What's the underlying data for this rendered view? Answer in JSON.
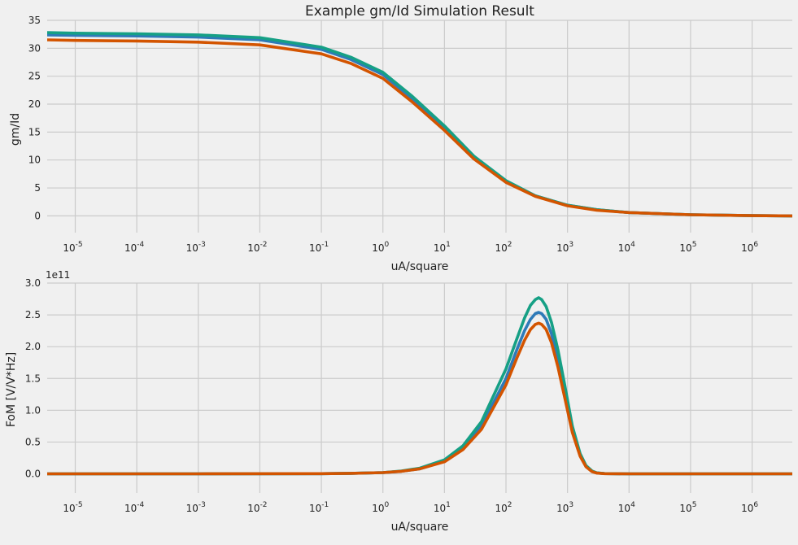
{
  "title": "Example gm/Id Simulation Result",
  "colors": {
    "background": "#f0f0f0",
    "grid": "#cbcbcb",
    "series": [
      "#2e7ab8",
      "#16a085",
      "#d35400"
    ]
  },
  "chart_data": [
    {
      "type": "line",
      "ylabel": "gm/Id",
      "xlabel": "uA/square",
      "xscale": "log",
      "xlim": [
        3.5e-06,
        4500000.0
      ],
      "ylim": [
        -3,
        35
      ],
      "yticks": [
        0,
        5,
        10,
        15,
        20,
        25,
        30,
        35
      ],
      "ytick_labels": [
        "0",
        "5",
        "10",
        "15",
        "20",
        "25",
        "30",
        "35"
      ],
      "xticks": [
        1e-05,
        0.0001,
        0.001,
        0.01,
        0.1,
        1,
        10,
        100,
        1000,
        10000,
        100000,
        1000000
      ],
      "xtick_bases": [
        "10",
        "10",
        "10",
        "10",
        "10",
        "10",
        "10",
        "10",
        "10",
        "10",
        "10",
        "10"
      ],
      "xtick_exponents": [
        "-5",
        "-4",
        "-3",
        "-2",
        "-1",
        "0",
        "1",
        "2",
        "3",
        "4",
        "5",
        "6"
      ],
      "grid": true,
      "series": [
        {
          "x": [
            3.5e-06,
            1e-05,
            0.0001,
            0.001,
            0.01,
            0.1,
            0.3,
            1,
            3,
            10,
            30,
            100,
            300,
            1000,
            3000,
            10000,
            100000,
            1000000,
            4500000.0
          ],
          "y": [
            32.4,
            32.3,
            32.2,
            32.0,
            31.5,
            29.8,
            28.0,
            25.3,
            21.0,
            15.8,
            10.5,
            6.2,
            3.6,
            1.9,
            1.1,
            0.6,
            0.2,
            0.05,
            0.0
          ]
        },
        {
          "x": [
            3.5e-06,
            1e-05,
            0.0001,
            0.001,
            0.01,
            0.1,
            0.3,
            1,
            3,
            10,
            30,
            100,
            300,
            1000,
            3000,
            10000,
            100000,
            1000000,
            4500000.0
          ],
          "y": [
            32.8,
            32.7,
            32.6,
            32.4,
            31.9,
            30.2,
            28.4,
            25.7,
            21.4,
            16.1,
            10.7,
            6.3,
            3.6,
            1.9,
            1.1,
            0.6,
            0.2,
            0.05,
            0.0
          ]
        },
        {
          "x": [
            3.5e-06,
            1e-05,
            0.0001,
            0.001,
            0.01,
            0.1,
            0.3,
            1,
            3,
            10,
            30,
            100,
            300,
            1000,
            3000,
            10000,
            100000,
            1000000,
            4500000.0
          ],
          "y": [
            31.5,
            31.4,
            31.3,
            31.1,
            30.6,
            29.0,
            27.3,
            24.6,
            20.4,
            15.3,
            10.2,
            6.0,
            3.5,
            1.8,
            1.0,
            0.6,
            0.2,
            0.05,
            0.0
          ]
        }
      ]
    },
    {
      "type": "line",
      "ylabel": "FoM [V/V*Hz]",
      "xlabel": "uA/square",
      "xscale": "log",
      "xlim": [
        3.5e-06,
        4500000.0
      ],
      "ylim": [
        -0.3,
        3.0
      ],
      "y_multiplier": "1e11",
      "yticks": [
        0,
        0.5,
        1.0,
        1.5,
        2.0,
        2.5,
        3.0
      ],
      "ytick_labels": [
        "0.0",
        "0.5",
        "1.0",
        "1.5",
        "2.0",
        "2.5",
        "3.0"
      ],
      "xticks": [
        1e-05,
        0.0001,
        0.001,
        0.01,
        0.1,
        1,
        10,
        100,
        1000,
        10000,
        100000,
        1000000
      ],
      "xtick_bases": [
        "10",
        "10",
        "10",
        "10",
        "10",
        "10",
        "10",
        "10",
        "10",
        "10",
        "10",
        "10"
      ],
      "xtick_exponents": [
        "-5",
        "-4",
        "-3",
        "-2",
        "-1",
        "0",
        "1",
        "2",
        "3",
        "4",
        "5",
        "6"
      ],
      "grid": true,
      "series": [
        {
          "x": [
            3.5e-06,
            0.001,
            0.1,
            0.3,
            1,
            2,
            4,
            10,
            20,
            40,
            100,
            150,
            200,
            250,
            300,
            340,
            380,
            450,
            550,
            700,
            900,
            1200,
            1600,
            2000,
            2500,
            3000,
            4000,
            10000,
            4500000.0
          ],
          "y": [
            0,
            0,
            0.003,
            0.008,
            0.02,
            0.04,
            0.08,
            0.2,
            0.4,
            0.75,
            1.5,
            1.95,
            2.25,
            2.43,
            2.52,
            2.54,
            2.52,
            2.43,
            2.2,
            1.8,
            1.3,
            0.7,
            0.3,
            0.12,
            0.04,
            0.015,
            0.004,
            0,
            0
          ]
        },
        {
          "x": [
            3.5e-06,
            0.001,
            0.1,
            0.3,
            1,
            2,
            4,
            10,
            20,
            40,
            100,
            150,
            200,
            250,
            300,
            340,
            380,
            450,
            550,
            700,
            900,
            1200,
            1600,
            2000,
            2500,
            3000,
            4000,
            10000,
            4500000.0
          ],
          "y": [
            0,
            0,
            0.003,
            0.008,
            0.02,
            0.045,
            0.09,
            0.22,
            0.44,
            0.82,
            1.65,
            2.12,
            2.45,
            2.65,
            2.74,
            2.77,
            2.74,
            2.63,
            2.38,
            1.95,
            1.4,
            0.75,
            0.32,
            0.13,
            0.045,
            0.016,
            0.004,
            0,
            0
          ]
        },
        {
          "x": [
            3.5e-06,
            0.001,
            0.1,
            0.3,
            1,
            2,
            4,
            10,
            20,
            40,
            100,
            150,
            200,
            250,
            300,
            340,
            380,
            450,
            550,
            700,
            900,
            1200,
            1600,
            2000,
            2500,
            3000,
            4000,
            10000,
            4500000.0
          ],
          "y": [
            0,
            0,
            0.003,
            0.008,
            0.02,
            0.04,
            0.08,
            0.19,
            0.38,
            0.7,
            1.4,
            1.82,
            2.1,
            2.27,
            2.35,
            2.37,
            2.35,
            2.27,
            2.06,
            1.68,
            1.2,
            0.65,
            0.28,
            0.11,
            0.035,
            0.012,
            0.003,
            0,
            0
          ]
        }
      ]
    }
  ]
}
